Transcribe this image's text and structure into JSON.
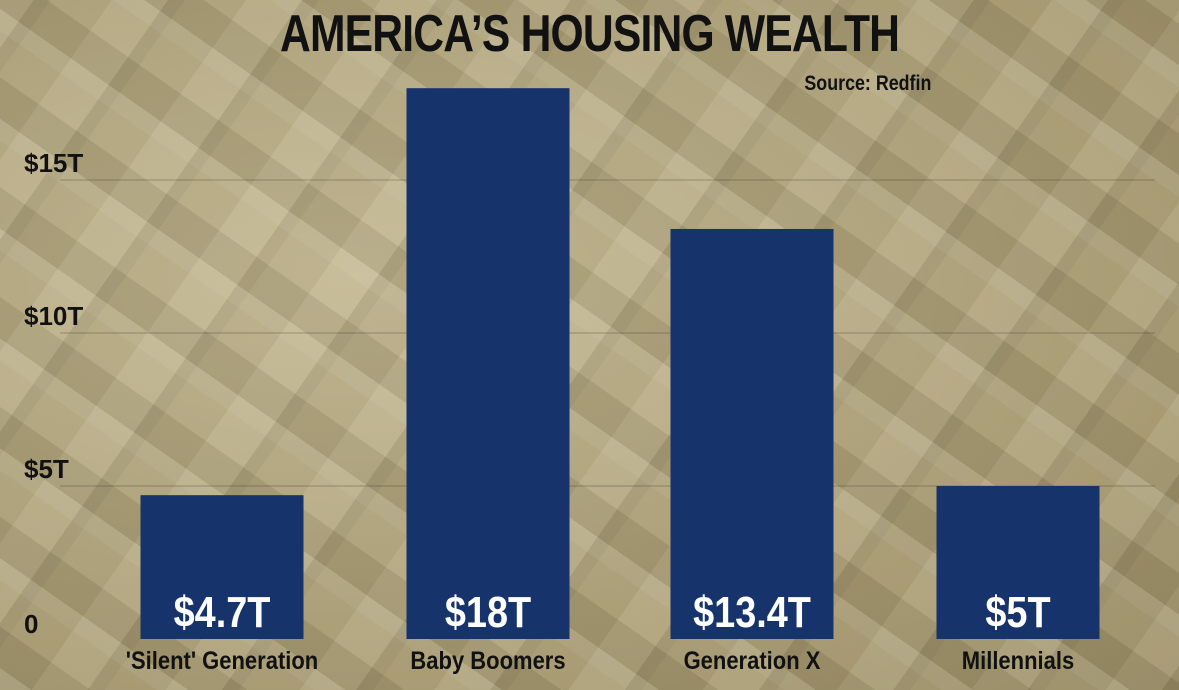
{
  "title": "AMERICA’S HOUSING WEALTH",
  "source": "Source: Redfin",
  "colors": {
    "bar": "#17336b",
    "grid": "rgba(60,55,40,0.35)",
    "text": "#111111",
    "label": "#ffffff"
  },
  "chart_data": {
    "type": "bar",
    "title": "AMERICA’S HOUSING WEALTH",
    "categories": [
      "'Silent' Generation",
      "Baby Boomers",
      "Generation X",
      "Millennials"
    ],
    "values": [
      4.7,
      18,
      13.4,
      5
    ],
    "data_labels": [
      "$4.7T",
      "$18T",
      "$13.4T",
      "$5T"
    ],
    "y_ticks": [
      0,
      5,
      10,
      15
    ],
    "y_tick_labels": [
      "0",
      "$5T",
      "$10T",
      "$15T"
    ],
    "ylim": [
      0,
      20
    ],
    "grid": true,
    "xlabel": "",
    "ylabel": ""
  }
}
